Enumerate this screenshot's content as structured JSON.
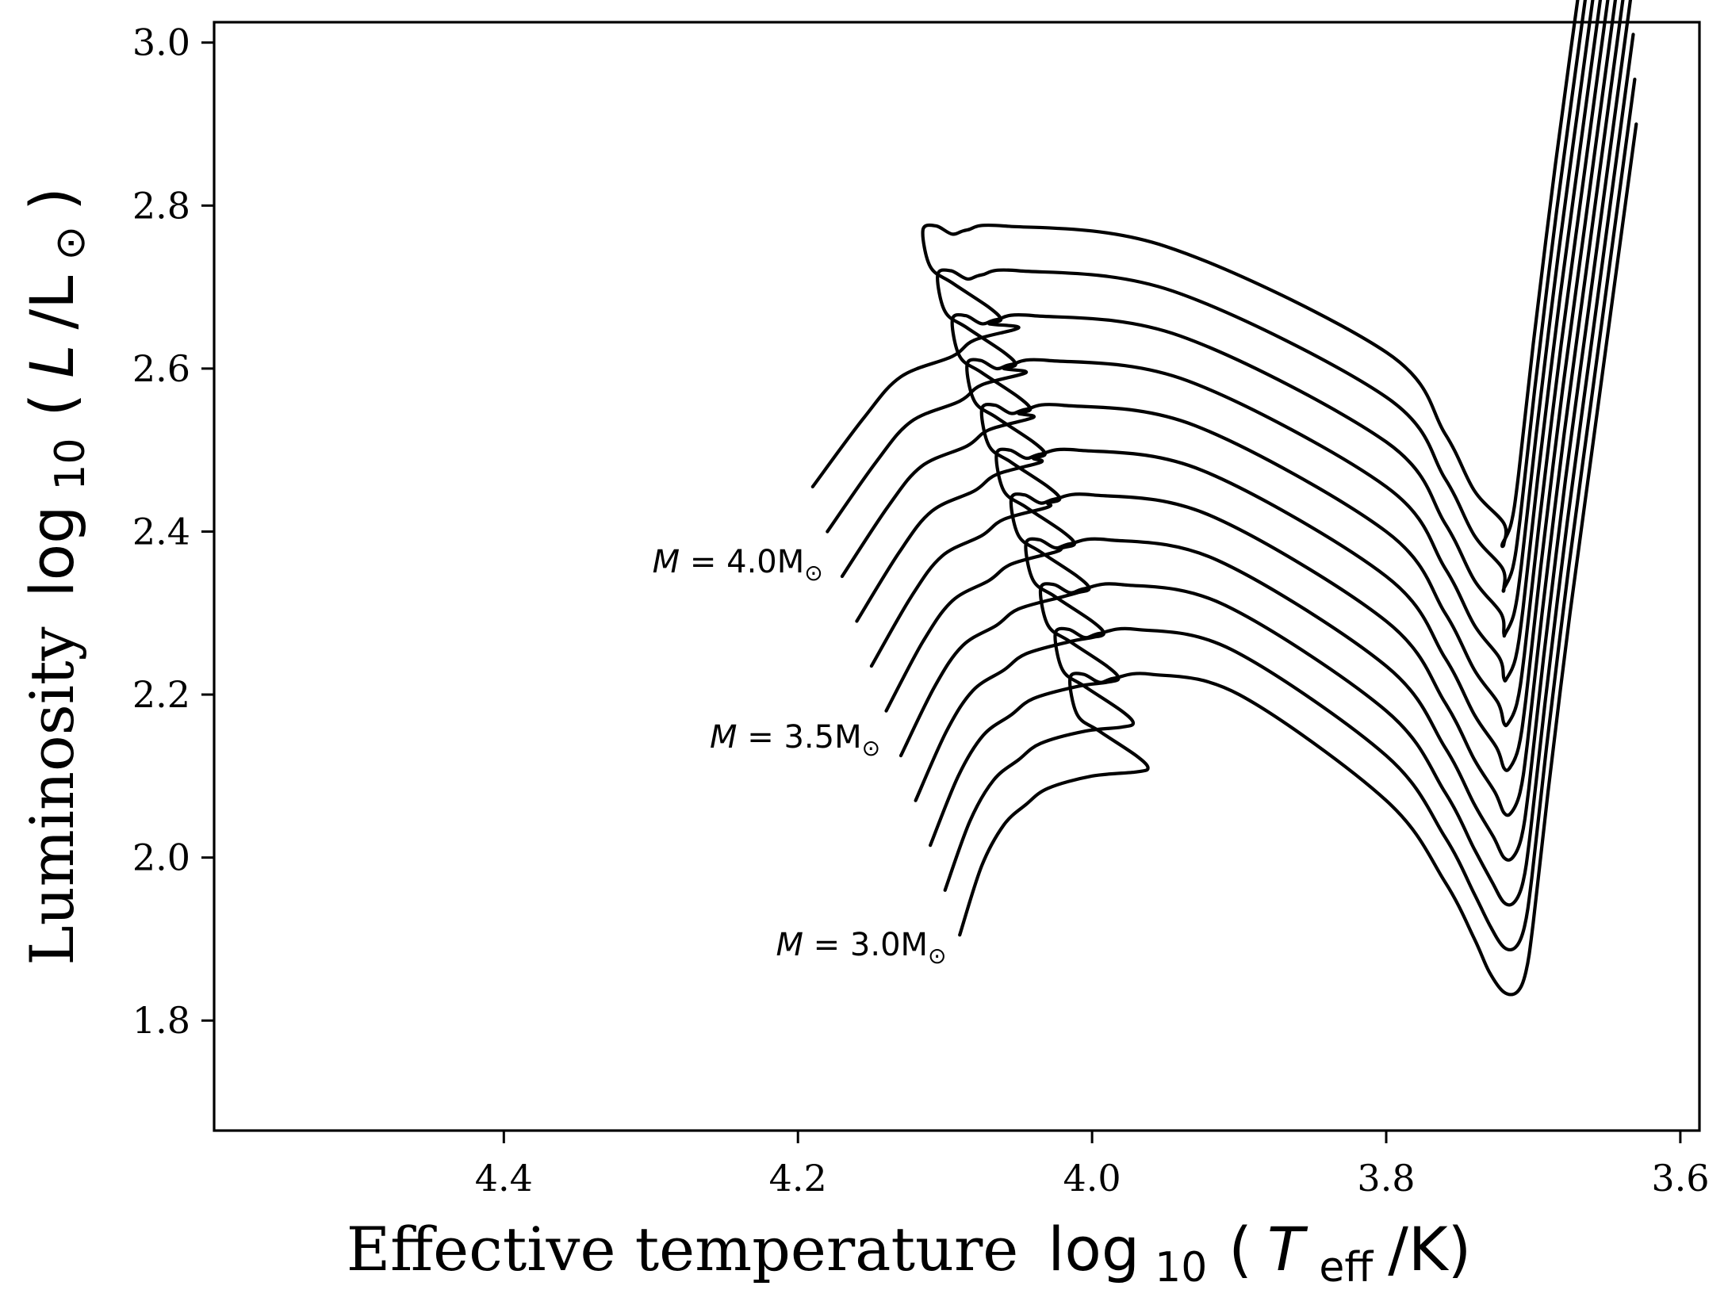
{
  "chart_data": {
    "type": "line",
    "title": "",
    "xlabel": {
      "word": "Effective temperature",
      "log": "log",
      "log_sub": "10",
      "open": "(",
      "var": "T",
      "var_sub": "eff",
      "unit": "/K)"
    },
    "ylabel": {
      "word": "Luminosity",
      "log": "log",
      "log_sub": "10",
      "open": "(",
      "var": "L",
      "unit": "/L",
      "unit_sub": "⊙",
      "close": ")"
    },
    "x_inverted": true,
    "xlim": [
      4.597,
      3.587
    ],
    "ylim": [
      1.665,
      3.025
    ],
    "xticks": [
      "4.4",
      "4.2",
      "4.0",
      "3.8",
      "3.6"
    ],
    "yticks": [
      "1.8",
      "2.0",
      "2.2",
      "2.4",
      "2.6",
      "2.8",
      "3.0"
    ],
    "grid": false,
    "legend": "none",
    "line_color": "#000000",
    "annotations": [
      {
        "text": "M = 4.0M",
        "sub": "⊙",
        "x": 4.183,
        "y": 2.35
      },
      {
        "text": "M = 3.5M",
        "sub": "⊙",
        "x": 4.144,
        "y": 2.135
      },
      {
        "text": "M = 3.0M",
        "sub": "⊙",
        "x": 4.099,
        "y": 1.88
      }
    ],
    "masses": [
      3.0,
      3.1,
      3.2,
      3.3,
      3.4,
      3.5,
      3.6,
      3.7,
      3.8,
      3.9,
      4.0
    ],
    "series": [
      {
        "mass": 3.0,
        "x": [
          4.09,
          4.075,
          4.06,
          4.045,
          4.03,
          4.0,
          3.97,
          3.962,
          3.97,
          3.995,
          4.01,
          4.015,
          4.006,
          3.995,
          3.985,
          3.96,
          3.9,
          3.8,
          3.76,
          3.74,
          3.73,
          3.72,
          3.711,
          3.705,
          3.7,
          3.69,
          3.675,
          3.66,
          3.645,
          3.63
        ],
        "y": [
          1.905,
          1.99,
          2.04,
          2.065,
          2.085,
          2.1,
          2.105,
          2.11,
          2.125,
          2.155,
          2.175,
          2.22,
          2.225,
          2.215,
          2.22,
          2.225,
          2.2,
          2.07,
          1.97,
          1.9,
          1.86,
          1.835,
          1.835,
          1.86,
          1.92,
          2.08,
          2.3,
          2.5,
          2.7,
          2.9
        ]
      },
      {
        "mass": 3.1,
        "x": [
          4.1,
          4.083,
          4.067,
          4.05,
          4.035,
          4.005,
          3.98,
          3.972,
          3.98,
          4.005,
          4.02,
          4.025,
          4.016,
          4.005,
          3.995,
          3.97,
          3.905,
          3.8,
          3.76,
          3.74,
          3.729,
          3.72,
          3.712,
          3.706,
          3.701,
          3.691,
          3.676,
          3.661,
          3.646,
          3.631
        ],
        "y": [
          1.96,
          2.045,
          2.095,
          2.12,
          2.14,
          2.155,
          2.16,
          2.165,
          2.18,
          2.21,
          2.23,
          2.275,
          2.28,
          2.27,
          2.275,
          2.28,
          2.255,
          2.125,
          2.025,
          1.955,
          1.915,
          1.89,
          1.89,
          1.915,
          1.975,
          2.135,
          2.355,
          2.555,
          2.755,
          2.955
        ]
      }
    ]
  }
}
